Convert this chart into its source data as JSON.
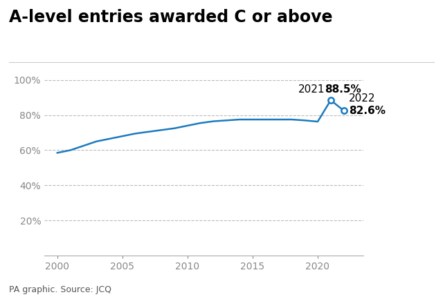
{
  "title": "A-level entries awarded C or above",
  "source": "PA graphic. Source: JCQ",
  "years": [
    2000,
    2001,
    2002,
    2003,
    2004,
    2005,
    2006,
    2007,
    2008,
    2009,
    2010,
    2011,
    2012,
    2013,
    2014,
    2015,
    2016,
    2017,
    2018,
    2019,
    2020,
    2021,
    2022
  ],
  "values": [
    58.5,
    60.0,
    62.5,
    65.0,
    66.5,
    68.0,
    69.5,
    70.5,
    71.5,
    72.5,
    74.0,
    75.5,
    76.5,
    77.0,
    77.5,
    77.5,
    77.5,
    77.5,
    77.5,
    77.0,
    76.3,
    88.5,
    82.6
  ],
  "line_color": "#1a7abf",
  "highlight_years": [
    2021,
    2022
  ],
  "highlight_values": [
    88.5,
    82.6
  ],
  "ylim": [
    0,
    105
  ],
  "yticks": [
    20,
    40,
    60,
    80,
    100
  ],
  "xlim": [
    1999,
    2023.5
  ],
  "xticks": [
    2000,
    2005,
    2010,
    2015,
    2020
  ],
  "background_color": "#ffffff",
  "grid_color": "#bbbbbb",
  "title_fontsize": 17,
  "annotation_fontsize": 11,
  "source_fontsize": 9
}
